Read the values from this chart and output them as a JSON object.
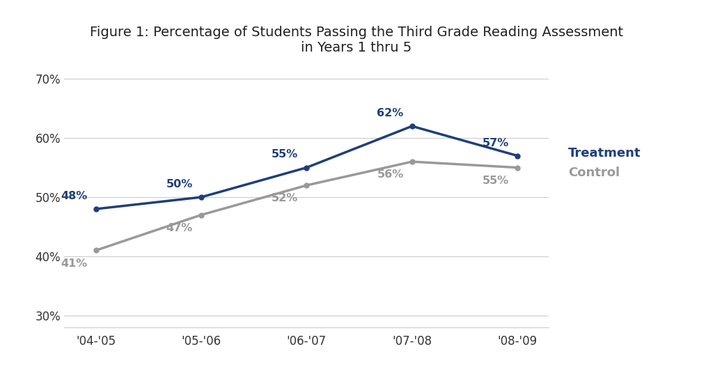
{
  "title": "Figure 1: Percentage of Students Passing the Third Grade Reading Assessment\nin Years 1 thru 5",
  "x_labels": [
    "'04-'05",
    "'05-'06",
    "'06-'07",
    "'07-'08",
    "'08-'09"
  ],
  "x_values": [
    0,
    1,
    2,
    3,
    4
  ],
  "treatment_values": [
    0.48,
    0.5,
    0.55,
    0.62,
    0.57
  ],
  "control_values": [
    0.41,
    0.47,
    0.52,
    0.56,
    0.55
  ],
  "treatment_labels": [
    "48%",
    "50%",
    "55%",
    "62%",
    "57%"
  ],
  "control_labels": [
    "41%",
    "47%",
    "52%",
    "56%",
    "55%"
  ],
  "treatment_color": "#1F3F7A",
  "control_color": "#999999",
  "ylim": [
    0.28,
    0.72
  ],
  "yticks": [
    0.3,
    0.4,
    0.5,
    0.6,
    0.7
  ],
  "ytick_labels": [
    "30%",
    "40%",
    "50%",
    "60%",
    "70%"
  ],
  "legend_treatment": "Treatment",
  "legend_control": "Control",
  "title_fontsize": 14,
  "label_fontsize": 11.5,
  "tick_fontsize": 12,
  "line_width": 2.5,
  "marker": "o",
  "marker_size": 5
}
